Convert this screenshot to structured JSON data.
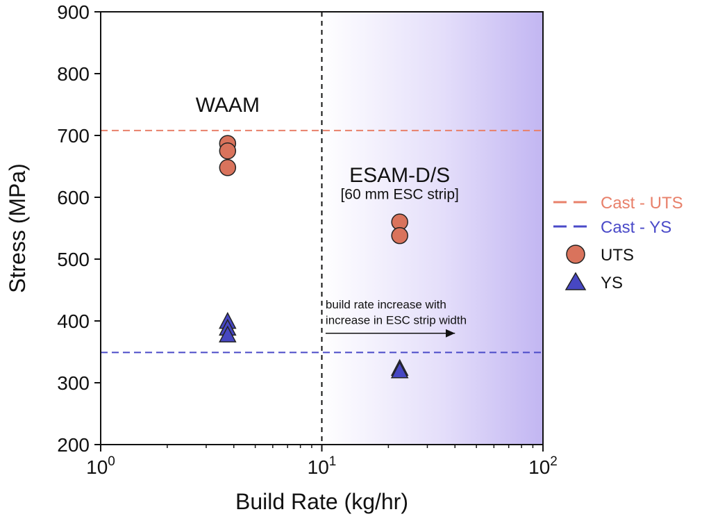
{
  "chart_data": {
    "type": "scatter",
    "xscale": "log",
    "xlim": [
      1,
      100
    ],
    "ylim": [
      200,
      900
    ],
    "xlabel": "Build Rate (kg/hr)",
    "ylabel": "Stress (MPa)",
    "x_ticks": [
      {
        "value": 1,
        "base": "10",
        "exp": "0"
      },
      {
        "value": 10,
        "base": "10",
        "exp": "1"
      },
      {
        "value": 100,
        "base": "10",
        "exp": "2"
      }
    ],
    "y_ticks": [
      200,
      300,
      400,
      500,
      600,
      700,
      800,
      900
    ],
    "threshold_x": 10,
    "shaded_region": {
      "from": 10,
      "to": 100,
      "color": "#c9bff4"
    },
    "reference_lines": [
      {
        "name": "Cast - UTS",
        "y": 708,
        "color": "#e8806a"
      },
      {
        "name": "Cast - YS",
        "y": 349,
        "color": "#4a4ac8"
      }
    ],
    "series": [
      {
        "name": "UTS",
        "marker": "circle",
        "color": "#d9735c",
        "points": [
          {
            "x": 3.75,
            "y": 687
          },
          {
            "x": 3.75,
            "y": 675
          },
          {
            "x": 3.75,
            "y": 648
          },
          {
            "x": 22.5,
            "y": 560
          },
          {
            "x": 22.5,
            "y": 538
          }
        ]
      },
      {
        "name": "YS",
        "marker": "triangle",
        "color": "#4747c2",
        "points": [
          {
            "x": 3.75,
            "y": 398
          },
          {
            "x": 3.75,
            "y": 387
          },
          {
            "x": 3.75,
            "y": 376
          },
          {
            "x": 22.5,
            "y": 322
          },
          {
            "x": 22.5,
            "y": 318
          }
        ]
      }
    ],
    "annotations": [
      {
        "id": "waam",
        "text": "WAAM",
        "x": 3.75,
        "y": 738
      },
      {
        "id": "esam",
        "text": "ESAM-D/S",
        "x": 22.5,
        "y": 625
      },
      {
        "id": "esam-sub",
        "text": "[60 mm ESC strip]",
        "x": 22.5,
        "y": 597
      },
      {
        "id": "note1",
        "text": "build rate increase with",
        "x": 10.4,
        "y": 420
      },
      {
        "id": "note2",
        "text": "increase in ESC strip width",
        "x": 10.4,
        "y": 395
      }
    ],
    "arrow": {
      "from_x": 10.4,
      "to_x": 40,
      "y": 380
    },
    "legend": {
      "position": "right-outside",
      "entries": [
        {
          "label": "Cast - UTS",
          "kind": "dash",
          "color": "#e8806a"
        },
        {
          "label": "Cast - YS",
          "kind": "dash",
          "color": "#4a4ac8"
        },
        {
          "label": "UTS",
          "kind": "circle",
          "color": "#d9735c"
        },
        {
          "label": "YS",
          "kind": "triangle",
          "color": "#4747c2"
        }
      ]
    }
  }
}
